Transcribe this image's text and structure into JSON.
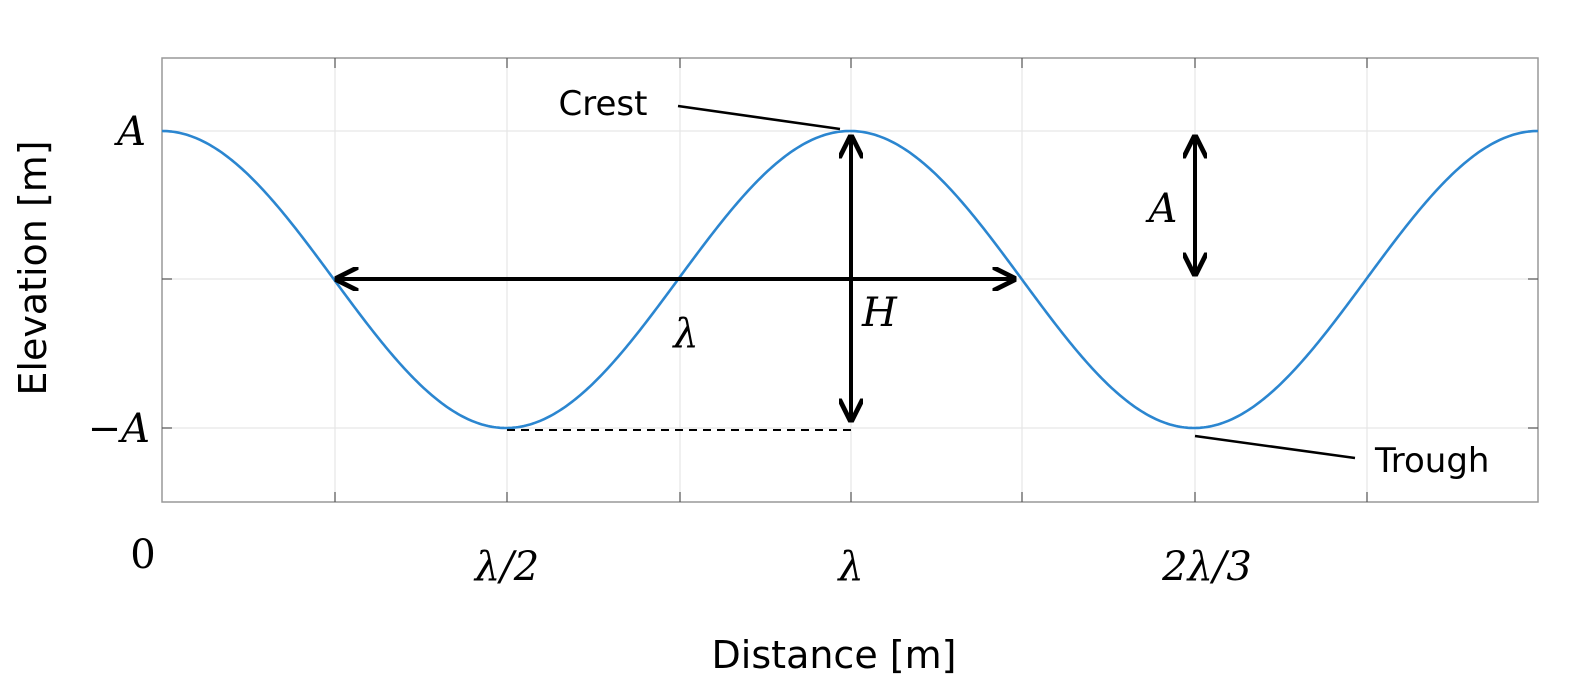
{
  "axes": {
    "ylabel": "Elevation [m]",
    "xlabel": "Distance [m]",
    "yticks": [
      "A",
      "−A"
    ],
    "xticks": [
      "0",
      "λ/2",
      "λ",
      "2λ/3"
    ]
  },
  "annotations": {
    "crest": "Crest",
    "trough": "Trough",
    "wavelength": "λ",
    "height": "H",
    "amplitude": "A"
  },
  "colors": {
    "wave": "#2b86d0",
    "arrows": "#000000",
    "grid": "#e6e6e6",
    "frame": "#999999"
  }
}
